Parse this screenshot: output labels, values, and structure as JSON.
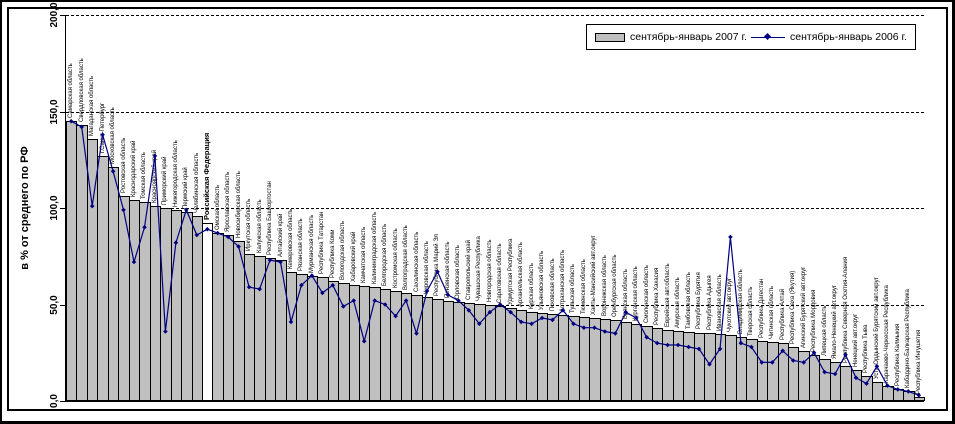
{
  "legend": {
    "items": [
      {
        "label": "сентябрь-январь 2007 г.",
        "swatch": "gray-bar"
      },
      {
        "label": "сентябрь-январь 2006 г.",
        "swatch": "navy-line-diamond"
      }
    ]
  },
  "colors": {
    "bar_fill": "#C0C0C0",
    "bar_highlight_fill": "#FFFFFF",
    "line": "#000080",
    "axis": "#000000",
    "background": "#FFFFFF",
    "frame": "#000000"
  },
  "chart_data": {
    "type": "bar",
    "title": "",
    "xlabel": "",
    "ylabel": "в % от среднего по РФ",
    "ylim": [
      0,
      200
    ],
    "y_ticks": [
      {
        "label": "0,0",
        "value": 0
      },
      {
        "label": "50,0",
        "value": 50
      },
      {
        "label": "100,0",
        "value": 100
      },
      {
        "label": "150,0",
        "value": 150
      },
      {
        "label": "200,0",
        "value": 200
      }
    ],
    "grid": "horizontal-dashed",
    "legend_position": "top-right",
    "highlight_category": "Российская Федерация",
    "categories": [
      "Самарская область",
      "Свердловская область",
      "Магаданская область",
      "г.Санкт-Петербург",
      "Московская область",
      "Ростовская область",
      "Краснодарский край",
      "Томская область",
      "Красноярский край",
      "Приморский край",
      "Нижегородская область",
      "Пермский край",
      "Челябинская область",
      "Российская Федерация",
      "Омская область",
      "Ярославская область",
      "Новосибирская область",
      "Иркутская область",
      "Калужская область",
      "Республика Башкортостан",
      "Алтайский край",
      "Кемеровская область",
      "Рязанская область",
      "Мурманская область",
      "Республика Татарстан",
      "Республика Коми",
      "Вологодская область",
      "Хабаровский край",
      "Камчатская область",
      "Калининградская область",
      "Белгородская область",
      "Костромская область",
      "Волгоградская область",
      "Сахалинская область",
      "Кировская область",
      "Республика Марий Эл",
      "Пензенская область",
      "Орловская область",
      "Ставропольский край",
      "Чувашская Республика",
      "Новгородская область",
      "Саратовская область",
      "Удмуртская Республика",
      "Архангельская область",
      "Курская область",
      "Ульяновская область",
      "Псковская область",
      "Астраханская область",
      "Тульская область",
      "Тюменская область",
      "Ханты-Мансийский авт.округ",
      "Воронежская область",
      "Оренбургская область",
      "Брянская область",
      "Курганская область",
      "Смоленская область",
      "Республика Хакасия",
      "Еврейская авт.область",
      "Амурская область",
      "Тамбовская область",
      "Республика Бурятия",
      "Республика Адыгея",
      "Ивановская область",
      "Чукотский авт.округ",
      "Владимирская область",
      "Тверская область",
      "Республика Дагестан",
      "Читинская область",
      "Республика Алтай",
      "Республика Саха (Якутия)",
      "Агинский Бурятский авт.округ",
      "Республика Мордовия",
      "Липецкая область",
      "Ямало-Ненецкий авт.округ",
      "Республика Северная Осетия-Алания",
      "Ненецкий авт.округ",
      "Республика Тыва",
      "Усть-Ордынский Бурятский авт.округ",
      "Карачаево-Черкесская Республика",
      "Республика Калмыкия",
      "Кабардино-Балкарская Республика",
      "Республика Ингушетия"
    ],
    "series": [
      {
        "name": "сентябрь-январь 2007 г.",
        "type": "bar",
        "color": "#C0C0C0",
        "values": [
          145,
          143,
          136,
          127,
          121,
          106,
          104,
          103,
          101,
          100,
          99,
          98,
          96,
          92,
          87,
          86,
          83,
          76,
          75,
          74,
          73,
          67,
          66,
          65,
          64,
          62,
          61,
          60,
          59.5,
          59,
          58,
          57,
          56,
          55,
          54,
          53,
          52,
          51.5,
          51,
          50.5,
          50,
          49,
          48,
          47,
          46,
          45.5,
          45,
          44.5,
          44,
          43.5,
          43,
          42.5,
          42,
          41,
          40,
          39,
          38,
          37,
          36.5,
          36,
          35.5,
          35,
          34.5,
          34,
          33,
          32,
          31,
          30.5,
          30,
          28,
          26,
          24,
          22,
          20,
          18,
          16,
          13,
          10,
          8,
          6,
          5,
          2
        ]
      },
      {
        "name": "сентябрь-январь 2006 г.",
        "type": "line",
        "color": "#000080",
        "marker": "diamond",
        "values": [
          145,
          142,
          101,
          138,
          119,
          99,
          72,
          90,
          127,
          36,
          82,
          99,
          86,
          89,
          87,
          85,
          80,
          59,
          58,
          73,
          72,
          41,
          60,
          65,
          56,
          60,
          49,
          52,
          31,
          52,
          50,
          44,
          52,
          35,
          57,
          67,
          55,
          52,
          47,
          40,
          46,
          50,
          46,
          41,
          40,
          43,
          42,
          47,
          40,
          38,
          38,
          36,
          35,
          46,
          43,
          33,
          30,
          29,
          29,
          28,
          27,
          19,
          27,
          85,
          30,
          28,
          20,
          20,
          26,
          21,
          20,
          25,
          15,
          14,
          24,
          12,
          9,
          18,
          8,
          6,
          5,
          3
        ]
      }
    ]
  }
}
